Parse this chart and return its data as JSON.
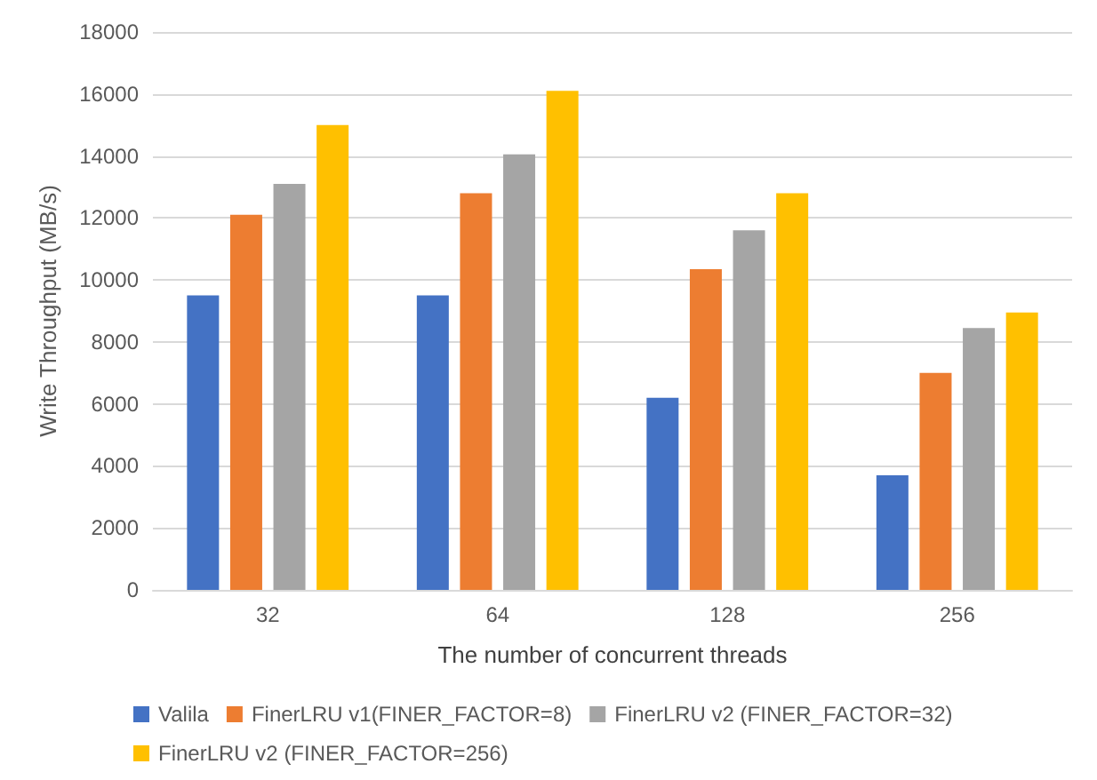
{
  "chart_data": {
    "type": "bar",
    "xlabel": "The number of concurrent threads",
    "ylabel": "Write Throughput (MB/s)",
    "categories": [
      "32",
      "64",
      "128",
      "256"
    ],
    "series": [
      {
        "name": "Valila",
        "color": "#4472c4",
        "values": [
          9500,
          9500,
          6200,
          3700
        ]
      },
      {
        "name": "FinerLRU v1(FINER_FACTOR=8)",
        "color": "#ed7d31",
        "values": [
          12100,
          12800,
          10350,
          7000
        ]
      },
      {
        "name": "FinerLRU v2 (FINER_FACTOR=32)",
        "color": "#a5a5a5",
        "values": [
          13100,
          14050,
          11600,
          8450
        ]
      },
      {
        "name": "FinerLRU v2 (FINER_FACTOR=256)",
        "color": "#ffc000",
        "values": [
          15000,
          16100,
          12800,
          8950
        ]
      }
    ],
    "ylim": [
      0,
      18000
    ],
    "yticks": [
      0,
      2000,
      4000,
      6000,
      8000,
      10000,
      12000,
      14000,
      16000,
      18000
    ],
    "grid": "y",
    "legend": "bottom"
  }
}
